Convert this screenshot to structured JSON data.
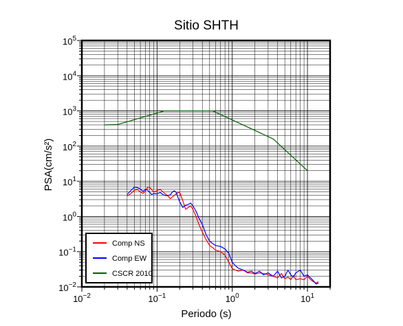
{
  "chart_data": {
    "type": "line",
    "title": "Sitio SHTH",
    "xlabel": "Periodo (s)",
    "ylabel": "PSA(cm/s²)",
    "xscale": "log",
    "yscale": "log",
    "xlim": [
      0.01,
      20
    ],
    "ylim": [
      0.01,
      100000
    ],
    "x_ticks": [
      {
        "value": 0.01,
        "base": "10",
        "exp": "−2"
      },
      {
        "value": 0.1,
        "base": "10",
        "exp": "−1"
      },
      {
        "value": 1,
        "base": "10",
        "exp": "0"
      },
      {
        "value": 10,
        "base": "10",
        "exp": "1"
      }
    ],
    "y_ticks": [
      {
        "value": 0.01,
        "base": "10",
        "exp": "−2"
      },
      {
        "value": 0.1,
        "base": "10",
        "exp": "−1"
      },
      {
        "value": 1,
        "base": "10",
        "exp": "0"
      },
      {
        "value": 10,
        "base": "10",
        "exp": "1"
      },
      {
        "value": 100,
        "base": "10",
        "exp": "2"
      },
      {
        "value": 1000,
        "base": "10",
        "exp": "3"
      },
      {
        "value": 10000,
        "base": "10",
        "exp": "4"
      },
      {
        "value": 100000,
        "base": "10",
        "exp": "5"
      }
    ],
    "grid": true,
    "legend_position": "bottom-left",
    "series": [
      {
        "name": "Comp NS",
        "color": "#ff0000",
        "x": [
          0.04,
          0.045,
          0.05,
          0.055,
          0.06,
          0.065,
          0.07,
          0.075,
          0.08,
          0.085,
          0.09,
          0.1,
          0.11,
          0.12,
          0.13,
          0.14,
          0.15,
          0.16,
          0.17,
          0.18,
          0.19,
          0.2,
          0.22,
          0.24,
          0.26,
          0.28,
          0.3,
          0.33,
          0.36,
          0.4,
          0.45,
          0.5,
          0.55,
          0.6,
          0.7,
          0.8,
          0.9,
          1.0,
          1.1,
          1.2,
          1.4,
          1.6,
          1.8,
          2.0,
          2.3,
          2.6,
          3.0,
          3.5,
          4.0,
          4.5,
          5.0,
          5.5,
          6.0,
          6.5,
          7.0,
          8.0,
          9.0,
          10,
          11,
          12,
          13,
          14
        ],
        "y": [
          3.8,
          4.5,
          5.6,
          5.8,
          5.0,
          4.5,
          5.3,
          6.8,
          6.6,
          5.8,
          5.0,
          5.5,
          5.9,
          5.0,
          4.3,
          3.8,
          3.2,
          3.6,
          4.0,
          4.4,
          4.8,
          4.8,
          2.8,
          1.6,
          1.8,
          2.0,
          1.6,
          1.0,
          0.6,
          0.36,
          0.22,
          0.15,
          0.13,
          0.11,
          0.1,
          0.08,
          0.05,
          0.033,
          0.03,
          0.028,
          0.03,
          0.025,
          0.025,
          0.023,
          0.025,
          0.024,
          0.022,
          0.02,
          0.018,
          0.024,
          0.017,
          0.019,
          0.016,
          0.021,
          0.016,
          0.017,
          0.016,
          0.02,
          0.016,
          0.014,
          0.013,
          0.014
        ]
      },
      {
        "name": "Comp EW",
        "color": "#0000ff",
        "x": [
          0.04,
          0.045,
          0.05,
          0.055,
          0.06,
          0.065,
          0.07,
          0.075,
          0.08,
          0.085,
          0.09,
          0.1,
          0.11,
          0.12,
          0.13,
          0.14,
          0.15,
          0.16,
          0.17,
          0.18,
          0.19,
          0.2,
          0.22,
          0.24,
          0.26,
          0.28,
          0.3,
          0.33,
          0.36,
          0.4,
          0.45,
          0.5,
          0.55,
          0.6,
          0.7,
          0.8,
          0.9,
          1.0,
          1.1,
          1.2,
          1.4,
          1.6,
          1.8,
          2.0,
          2.3,
          2.6,
          3.0,
          3.5,
          4.0,
          4.5,
          5.0,
          5.5,
          6.0,
          6.5,
          7.0,
          8.0,
          9.0,
          10,
          11,
          12,
          13,
          14
        ],
        "y": [
          4.2,
          5.5,
          6.8,
          6.6,
          6.0,
          5.2,
          5.8,
          5.6,
          4.8,
          4.2,
          4.5,
          4.4,
          4.8,
          4.2,
          3.9,
          4.0,
          4.1,
          5.0,
          5.4,
          4.8,
          3.5,
          2.6,
          1.8,
          2.1,
          2.2,
          2.4,
          2.0,
          1.4,
          0.9,
          0.6,
          0.3,
          0.2,
          0.17,
          0.15,
          0.14,
          0.12,
          0.09,
          0.05,
          0.04,
          0.034,
          0.03,
          0.026,
          0.028,
          0.024,
          0.028,
          0.022,
          0.025,
          0.02,
          0.028,
          0.018,
          0.02,
          0.03,
          0.022,
          0.019,
          0.025,
          0.03,
          0.02,
          0.022,
          0.018,
          0.015,
          0.012,
          0.013
        ]
      },
      {
        "name": "CSCR 2010",
        "color": "#006000",
        "x": [
          0.02,
          0.03,
          0.125,
          0.55,
          3.5,
          10
        ],
        "y": [
          400,
          410,
          1000,
          1000,
          160,
          20
        ]
      }
    ]
  }
}
